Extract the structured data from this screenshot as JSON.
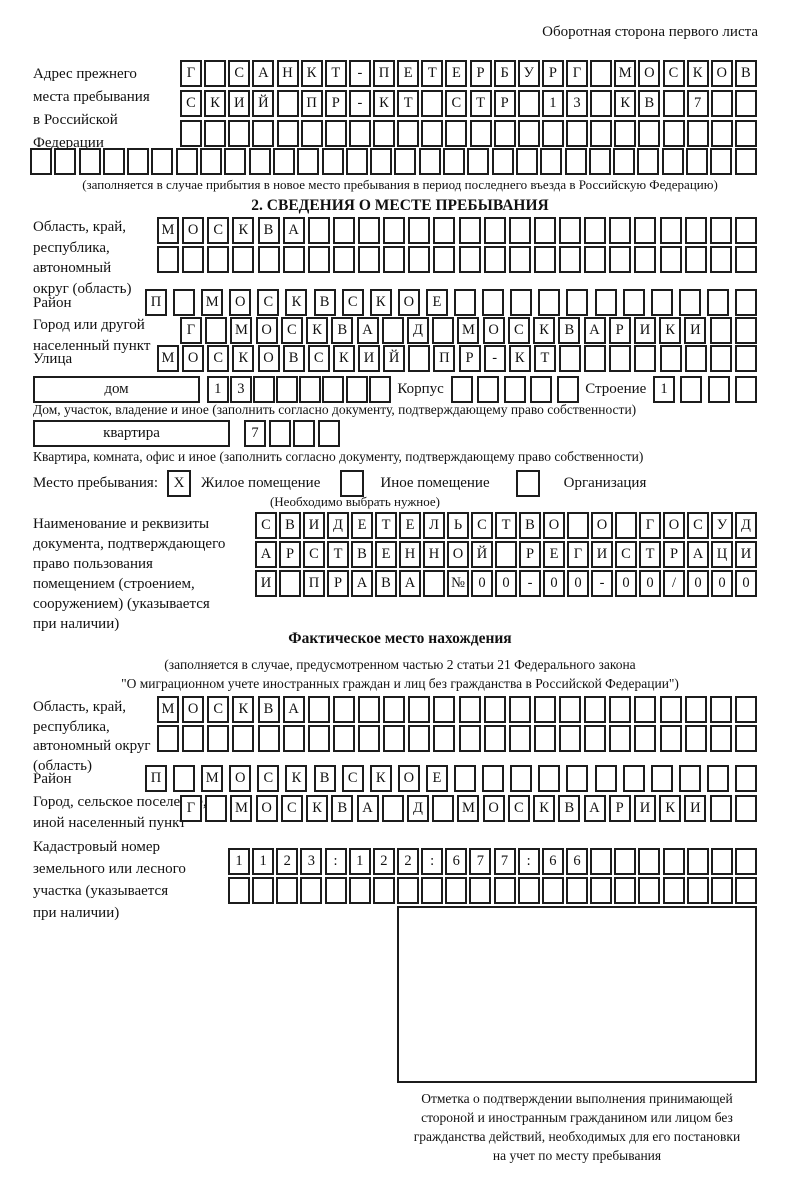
{
  "page_title": "Оборотная сторона первого листа",
  "prev_address": {
    "label_lines": [
      "Адрес прежнего",
      "места пребывания",
      "в Российской",
      "Федерации"
    ],
    "row1": {
      "n": 24,
      "chars": "Г САНКТ-ПЕТЕРБУРГ МОСКОВ"
    },
    "row2": {
      "n": 24,
      "chars": "СКИЙ ПР-КТ СТР 13 КВ 7"
    },
    "row3": {
      "n": 24,
      "chars": ""
    },
    "row4": {
      "n": 30,
      "chars": ""
    },
    "note": "(заполняется в случае прибытия в новое место пребывания в период последнего въезда в Российскую Федерацию)"
  },
  "section2": {
    "heading": "2. СВЕДЕНИЯ О МЕСТЕ ПРЕБЫВАНИЯ",
    "region": {
      "label_lines": [
        "Область, край,",
        "республика,",
        "автономный",
        "округ (область)"
      ],
      "row1": {
        "n": 24,
        "chars": "МОСКВА"
      },
      "row2": {
        "n": 24,
        "chars": ""
      }
    },
    "district": {
      "label": "Район",
      "row": {
        "n": 22,
        "chars": "П МОСКВСКОЕ"
      }
    },
    "city": {
      "label_lines": [
        "Город или другой",
        "населенный пункт"
      ],
      "row": {
        "n": 23,
        "chars": "Г МОСКВА Д МОСКВАРИКИ"
      }
    },
    "street": {
      "label": "Улица",
      "row": {
        "n": 24,
        "chars": "МОСКОВСКИЙ ПР-КТ"
      }
    },
    "house": {
      "box_label": "дом",
      "digits": {
        "n": 8,
        "chars": "13"
      },
      "korpus_label": "Корпус",
      "korpus": {
        "n": 5,
        "chars": ""
      },
      "stroenie_label": "Строение",
      "stroenie": {
        "n": 4,
        "chars": "1"
      },
      "caption": "Дом, участок, владение и иное (заполнить согласно документу, подтверждающему право собственности)"
    },
    "apartment": {
      "box_label": "квартира",
      "digits": {
        "n": 4,
        "chars": "7"
      },
      "caption": "Квартира, комната, офис и иное (заполнить согласно документу, подтверждающему право собственности)"
    },
    "stay_type": {
      "label": "Место пребывания:",
      "options": [
        {
          "label": "Жилое помещение",
          "checked": "X"
        },
        {
          "label": "Иное помещение",
          "checked": ""
        },
        {
          "label": "Организация",
          "checked": ""
        }
      ],
      "note": "(Необходимо выбрать нужное)"
    },
    "document": {
      "label_lines": [
        "Наименование и реквизиты",
        "документа, подтверждающего",
        "право пользования",
        "помещением (строением,",
        "сооружением) (указывается",
        "при наличии)"
      ],
      "row1": {
        "n": 21,
        "chars": "СВИДЕТЕЛЬСТВО О ГОСУД"
      },
      "row2": {
        "n": 21,
        "chars": "АРСТВЕННОЙ РЕГИСТРАЦИ"
      },
      "row3": {
        "n": 21,
        "chars": "И ПРАВА №00-00-00/000"
      }
    }
  },
  "actual_location": {
    "heading": "Фактическое место нахождения",
    "note_lines": [
      "(заполняется в случае, предусмотренном частью 2 статьи 21 Федерального закона",
      "\"О миграционном учете иностранных граждан и лиц без гражданства в Российской Федерации\")"
    ],
    "region": {
      "label_lines": [
        "Область, край,",
        "республика,",
        "автономный округ",
        "(область)"
      ],
      "row1": {
        "n": 24,
        "chars": "МОСКВА"
      },
      "row2": {
        "n": 24,
        "chars": ""
      }
    },
    "district": {
      "label": "Район",
      "row": {
        "n": 22,
        "chars": "П МОСКВСКОЕ"
      }
    },
    "city": {
      "label_lines": [
        "Город, сельское поселение,",
        "иной населенный пункт"
      ],
      "row": {
        "n": 23,
        "chars": "Г МОСКВА Д МОСКВАРИКИ"
      }
    },
    "cadastre": {
      "label_lines": [
        "Кадастровый номер",
        "земельного или лесного",
        "участка (указывается",
        "при наличии)"
      ],
      "row1": {
        "n": 22,
        "chars": "1123:122:677:66"
      },
      "row2": {
        "n": 22,
        "chars": ""
      }
    },
    "stamp_caption_lines": [
      "Отметка о подтверждении выполнения принимающей",
      "стороной и иностранным гражданином или лицом без",
      "гражданства действий, необходимых для его постановки",
      "на учет по месту пребывания"
    ]
  }
}
